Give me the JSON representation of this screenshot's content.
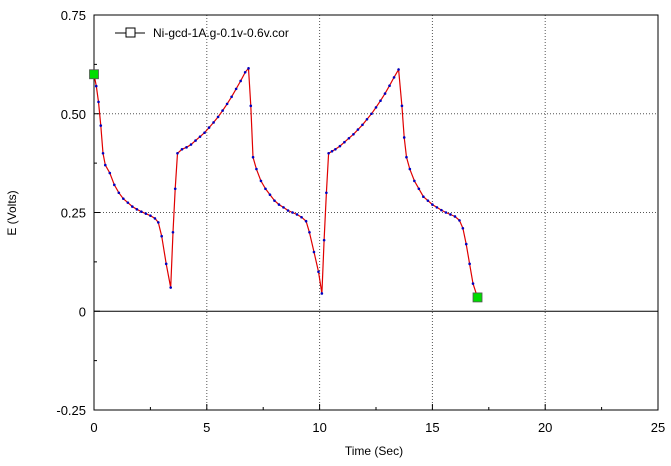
{
  "chart_data": {
    "type": "line",
    "xlabel": "Time (Sec)",
    "ylabel": "E (Volts)",
    "xlim": [
      0,
      25
    ],
    "ylim": [
      -0.25,
      0.75
    ],
    "x_ticks": [
      0,
      5,
      10,
      15,
      20,
      25
    ],
    "y_ticks": [
      -0.25,
      0,
      0.25,
      0.5,
      0.75
    ],
    "x_tick_labels": [
      "0",
      "5",
      "10",
      "15",
      "20",
      "25"
    ],
    "y_tick_labels": [
      "-0.25",
      "0",
      "0.25",
      "0.50",
      "0.75"
    ],
    "grid": "dotted",
    "legend_position": "top-left",
    "series": [
      {
        "name": "Ni-gcd-1A.g-0.1v-0.6v.cor",
        "line_color": "#e00000",
        "point_color": "#0000c0",
        "endpoint_color": "#00dd00",
        "x": [
          0.0,
          0.1,
          0.2,
          0.3,
          0.4,
          0.5,
          0.7,
          0.9,
          1.1,
          1.3,
          1.5,
          1.7,
          1.9,
          2.1,
          2.3,
          2.5,
          2.7,
          2.85,
          3.0,
          3.2,
          3.4,
          3.5,
          3.6,
          3.7,
          3.9,
          4.1,
          4.3,
          4.5,
          4.7,
          4.9,
          5.1,
          5.3,
          5.5,
          5.7,
          5.9,
          6.1,
          6.3,
          6.5,
          6.7,
          6.85,
          6.95,
          7.05,
          7.2,
          7.4,
          7.6,
          7.8,
          8.0,
          8.2,
          8.4,
          8.6,
          8.8,
          9.0,
          9.2,
          9.4,
          9.55,
          9.75,
          9.95,
          10.1,
          10.2,
          10.3,
          10.4,
          10.55,
          10.7,
          10.9,
          11.1,
          11.3,
          11.5,
          11.7,
          11.9,
          12.1,
          12.3,
          12.5,
          12.7,
          12.9,
          13.1,
          13.3,
          13.5,
          13.65,
          13.75,
          13.85,
          14.0,
          14.2,
          14.4,
          14.6,
          14.8,
          15.0,
          15.2,
          15.4,
          15.6,
          15.8,
          16.0,
          16.2,
          16.35,
          16.5,
          16.65,
          16.8,
          17.0
        ],
        "y": [
          0.6,
          0.57,
          0.53,
          0.47,
          0.4,
          0.37,
          0.35,
          0.32,
          0.3,
          0.285,
          0.275,
          0.265,
          0.258,
          0.252,
          0.247,
          0.242,
          0.235,
          0.225,
          0.19,
          0.12,
          0.06,
          0.2,
          0.31,
          0.4,
          0.41,
          0.415,
          0.422,
          0.432,
          0.442,
          0.452,
          0.465,
          0.478,
          0.492,
          0.508,
          0.525,
          0.543,
          0.563,
          0.583,
          0.605,
          0.615,
          0.52,
          0.39,
          0.36,
          0.33,
          0.31,
          0.295,
          0.28,
          0.27,
          0.263,
          0.255,
          0.25,
          0.245,
          0.238,
          0.228,
          0.2,
          0.15,
          0.1,
          0.045,
          0.18,
          0.3,
          0.4,
          0.405,
          0.41,
          0.418,
          0.428,
          0.438,
          0.448,
          0.46,
          0.472,
          0.486,
          0.5,
          0.516,
          0.533,
          0.551,
          0.571,
          0.592,
          0.612,
          0.52,
          0.44,
          0.39,
          0.36,
          0.33,
          0.31,
          0.29,
          0.28,
          0.27,
          0.263,
          0.256,
          0.25,
          0.245,
          0.24,
          0.23,
          0.21,
          0.17,
          0.12,
          0.07,
          0.035
        ]
      }
    ]
  }
}
